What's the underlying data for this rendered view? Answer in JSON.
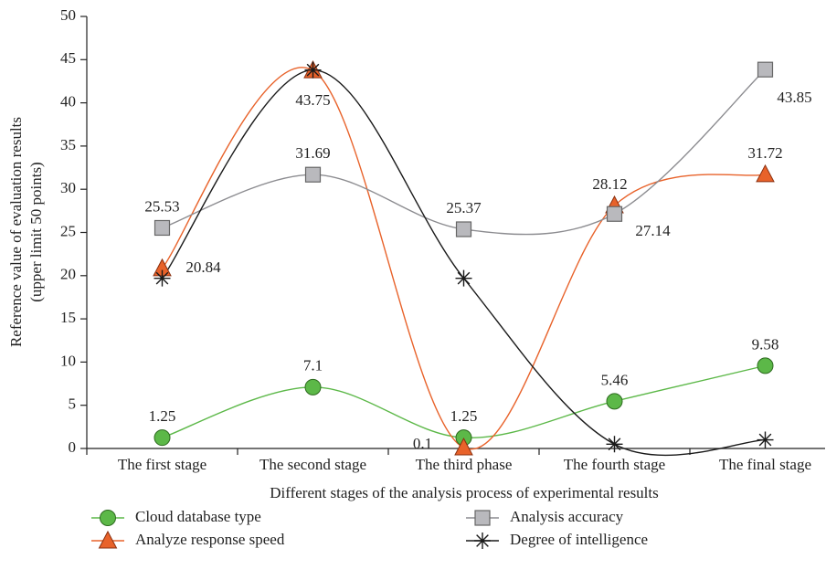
{
  "chart_data": {
    "type": "line",
    "y_label": [
      "Reference value of evaluation results",
      "(upper limit 50 points)"
    ],
    "x_label": "Different stages of the analysis process of experimental results",
    "categories": [
      "The first stage",
      "The second stage",
      "The third phase",
      "The fourth stage",
      "The final stage"
    ],
    "ylim": [
      0,
      50
    ],
    "yticks": [
      0,
      5,
      10,
      15,
      20,
      25,
      30,
      35,
      40,
      45,
      50
    ],
    "series": [
      {
        "name": "Cloud database type",
        "color": "#5cb848",
        "marker": "circle",
        "values": [
          1.25,
          7.1,
          1.25,
          5.46,
          9.58
        ]
      },
      {
        "name": "Analyze response speed",
        "color": "#e8622a",
        "marker": "triangle",
        "values": [
          20.84,
          43.75,
          0.1,
          28.12,
          31.72
        ]
      },
      {
        "name": "Analysis accuracy",
        "color": "#8c8c90",
        "marker": "square",
        "values": [
          25.53,
          31.69,
          25.37,
          27.14,
          43.85
        ]
      },
      {
        "name": "Degree of intelligence",
        "color": "#1a1a1a",
        "marker": "asterisk",
        "values": [
          19.7,
          43.8,
          19.7,
          0.5,
          1.0
        ]
      }
    ]
  }
}
